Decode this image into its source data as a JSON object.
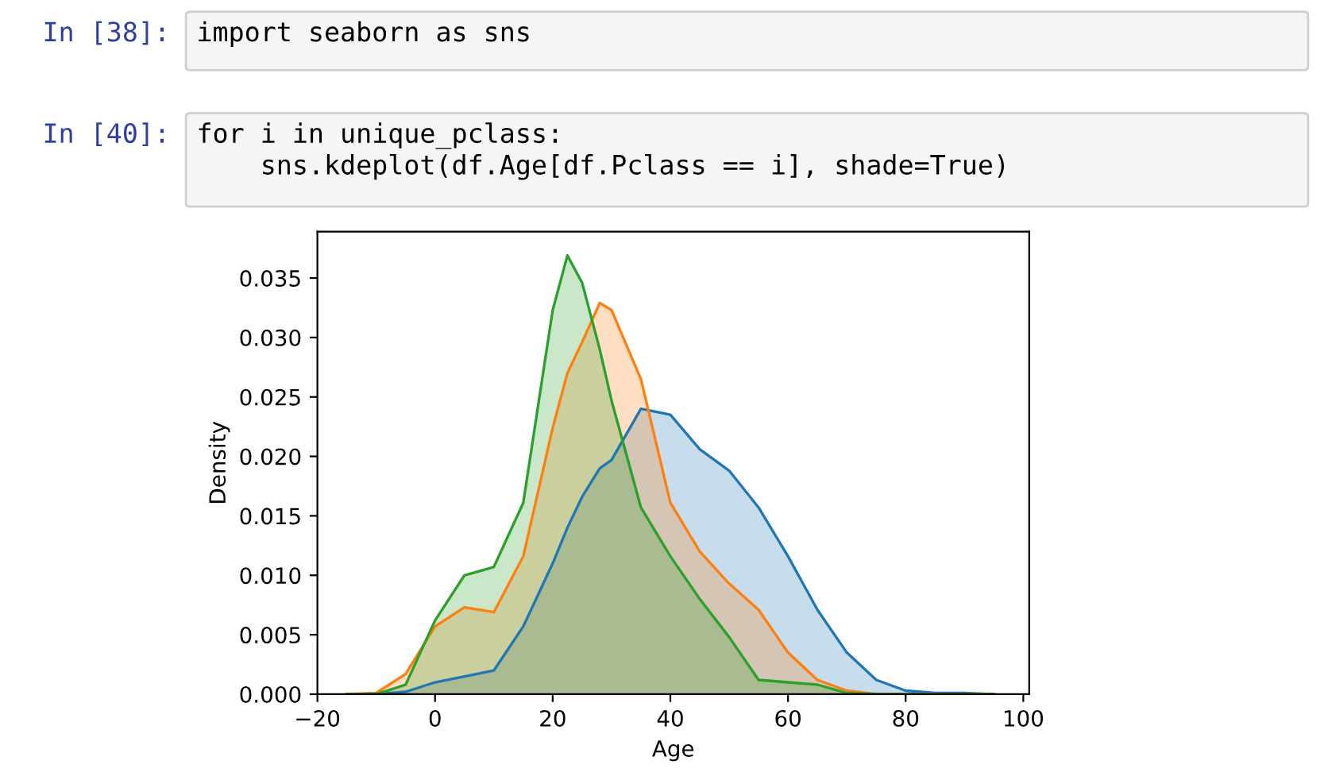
{
  "chart_data": {
    "type": "area",
    "xlabel": "Age",
    "ylabel": "Density",
    "annotations": [
      "In [38]:",
      "import seaborn as sns",
      "In [40]:",
      "for i in unique_pclass:\n    sns.kdeplot(df.Age[df.Pclass == i], shade=True)"
    ],
    "x": [
      -15,
      -10,
      -5,
      0,
      5,
      10,
      15,
      20,
      22.5,
      25,
      28,
      30,
      35,
      40,
      45,
      50,
      55,
      60,
      65,
      70,
      75,
      80,
      85,
      90,
      95
    ],
    "series": [
      {
        "color": "#1f77b4",
        "values": [
          0,
          0,
          0.0002,
          0.001,
          0.0015,
          0.002,
          0.0057,
          0.011,
          0.014,
          0.0166,
          0.019,
          0.0197,
          0.024,
          0.0235,
          0.0206,
          0.0188,
          0.0157,
          0.0116,
          0.0071,
          0.0035,
          0.0012,
          0.0003,
          0.0001,
          0.0001,
          0
        ]
      },
      {
        "color": "#ff7f0e",
        "values": [
          0,
          0.0001,
          0.0017,
          0.0057,
          0.0073,
          0.0069,
          0.0116,
          0.0224,
          0.027,
          0.0296,
          0.0329,
          0.0323,
          0.0265,
          0.0161,
          0.012,
          0.0093,
          0.0071,
          0.0035,
          0.0012,
          0.0003,
          0,
          0,
          0,
          0,
          0
        ]
      },
      {
        "color": "#2ca02c",
        "values": [
          0,
          0,
          0.0008,
          0.0062,
          0.01,
          0.0107,
          0.0161,
          0.0323,
          0.0369,
          0.0346,
          0.029,
          0.0247,
          0.0157,
          0.0116,
          0.008,
          0.0048,
          0.0012,
          0.001,
          0.0008,
          0.0001,
          0,
          0,
          0,
          0,
          0
        ]
      }
    ],
    "xlim": [
      -20,
      101
    ],
    "ylim": [
      0,
      0.0389
    ],
    "xticks": [
      {
        "value": -20,
        "label": "−20"
      },
      0,
      20,
      40,
      60,
      80,
      100
    ],
    "yticks": [
      {
        "value": 0,
        "label": "0.000"
      },
      {
        "value": 0.005,
        "label": "0.005"
      },
      {
        "value": 0.01,
        "label": "0.010"
      },
      {
        "value": 0.015,
        "label": "0.015"
      },
      {
        "value": 0.02,
        "label": "0.020"
      },
      {
        "value": 0.025,
        "label": "0.025"
      },
      {
        "value": 0.03,
        "label": "0.030"
      },
      {
        "value": 0.035,
        "label": "0.035"
      }
    ],
    "grid": false,
    "legend": false
  }
}
